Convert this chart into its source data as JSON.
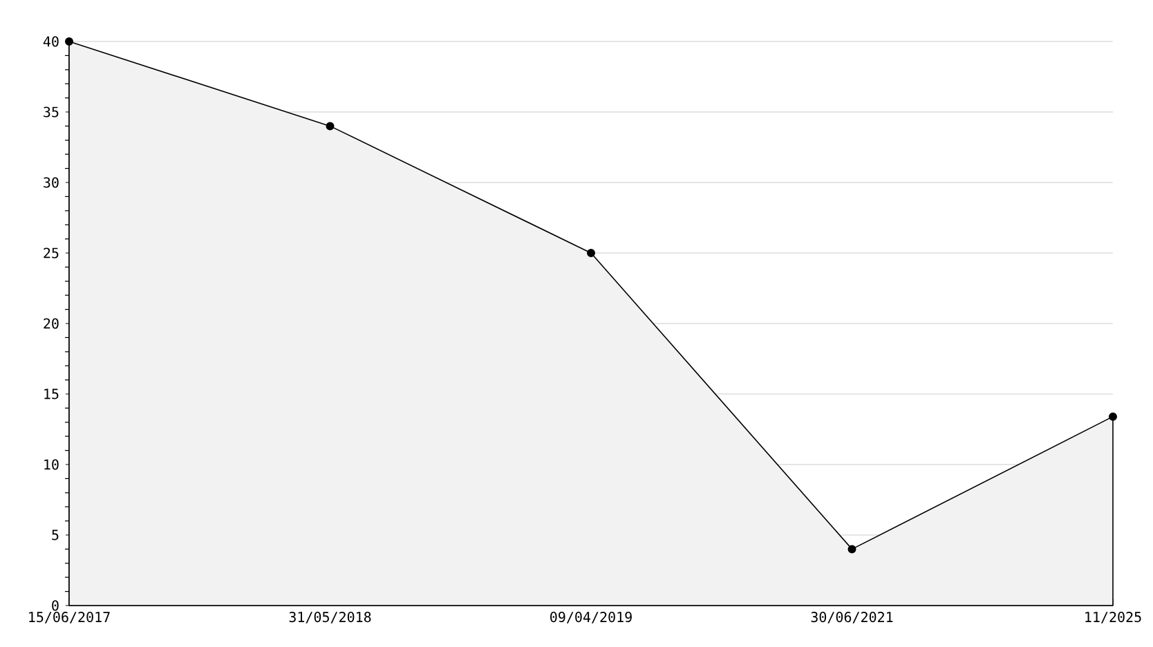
{
  "chart_data": {
    "type": "area",
    "categories": [
      "15/06/2017",
      "31/05/2018",
      "09/04/2019",
      "30/06/2021",
      "11/2025"
    ],
    "values": [
      40,
      34,
      25,
      4,
      13.4
    ],
    "color": "#f2f2f2",
    "ylim": [
      0,
      40
    ],
    "yticks": [
      0,
      5,
      10,
      15,
      20,
      25,
      30,
      35,
      40
    ],
    "grid": "y",
    "marker": "circle"
  }
}
